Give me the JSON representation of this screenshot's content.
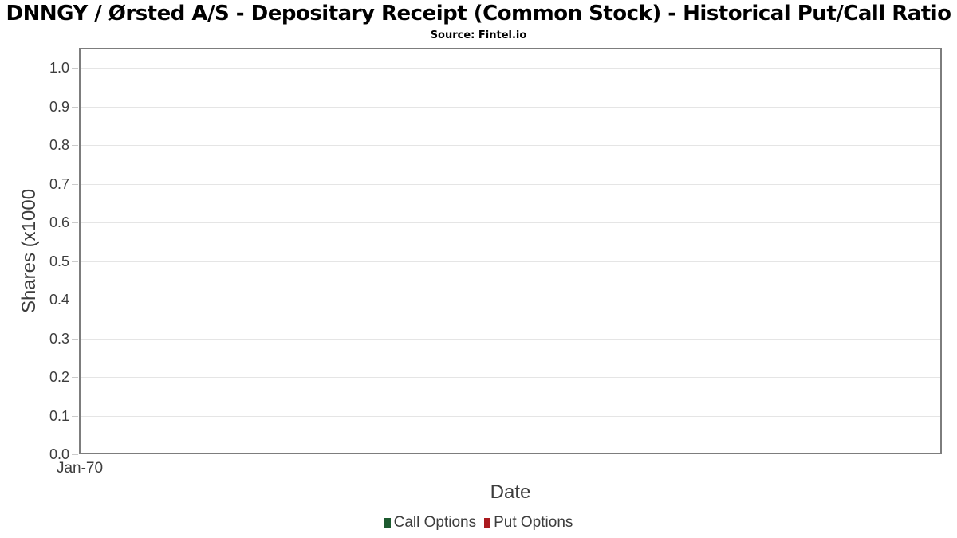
{
  "header": {
    "title": "DNNGY / Ørsted A/S - Depositary Receipt (Common Stock) - Historical Put/Call Ratio",
    "subtitle": "Source: Fintel.io"
  },
  "chart_data": {
    "type": "line",
    "title": "DNNGY / Ørsted A/S - Depositary Receipt (Common Stock) - Historical Put/Call Ratio",
    "subtitle": "Source: Fintel.io",
    "xlabel": "Date",
    "ylabel": "Shares (x1000",
    "ylim": [
      0.0,
      1.05
    ],
    "yticks": [
      0.0,
      0.1,
      0.2,
      0.3,
      0.4,
      0.5,
      0.6,
      0.7,
      0.8,
      0.9,
      1.0
    ],
    "ytick_labels": [
      "0.0",
      "0.1",
      "0.2",
      "0.3",
      "0.4",
      "0.5",
      "0.6",
      "0.7",
      "0.8",
      "0.9",
      "1.0"
    ],
    "xtick_labels": [
      "Jan-70"
    ],
    "grid": "horizontal",
    "legend_position": "bottom",
    "series": [
      {
        "name": "Call Options",
        "color": "#1d5a2f",
        "values": []
      },
      {
        "name": "Put Options",
        "color": "#ab1a1f",
        "values": []
      }
    ]
  },
  "legend": {
    "items": [
      {
        "label": "Call Options",
        "color": "#1d5a2f"
      },
      {
        "label": "Put Options",
        "color": "#ab1a1f"
      }
    ]
  },
  "colors": {
    "plot_border": "#7d7d7d",
    "gridline": "#e5e5e5",
    "tick": "#cbcbcb",
    "text": "#3d3d3d",
    "title_text": "#000000"
  }
}
